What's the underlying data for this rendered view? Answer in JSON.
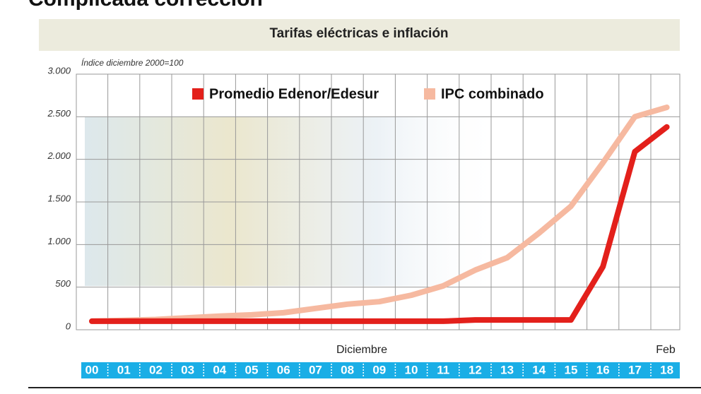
{
  "chart_data": {
    "type": "line",
    "heading": "Complicada corrección",
    "title": "Tarifas eléctricas e inflación",
    "y_label": "Índice diciembre 2000=100",
    "annotations": [
      "Diciembre",
      "Feb"
    ],
    "categories": [
      "00",
      "01",
      "02",
      "03",
      "04",
      "05",
      "06",
      "07",
      "08",
      "09",
      "10",
      "11",
      "12",
      "13",
      "14",
      "15",
      "16",
      "17",
      "18"
    ],
    "series": [
      {
        "name": "Promedio Edenor/Edesur",
        "color": "#e3201b",
        "values": [
          100,
          100,
          100,
          100,
          100,
          100,
          100,
          100,
          100,
          100,
          100,
          100,
          115,
          115,
          115,
          115,
          740,
          2090,
          2380
        ]
      },
      {
        "name": "IPC combinado",
        "color": "#f6b9a0",
        "values": [
          100,
          110,
          120,
          140,
          160,
          175,
          200,
          250,
          300,
          330,
          405,
          515,
          700,
          845,
          1135,
          1450,
          1960,
          2500,
          2610
        ]
      }
    ],
    "ylim": [
      0,
      3000
    ],
    "yticks": [
      0,
      500,
      {
        "value": 1000,
        "label": "1.000"
      },
      {
        "value": 1500,
        "label": "1.500"
      },
      {
        "value": 2000,
        "label": "2.000"
      },
      {
        "value": 2500,
        "label": "2.500"
      },
      {
        "value": 3000,
        "label": "3.000"
      }
    ],
    "grid": true,
    "legend": "top"
  }
}
